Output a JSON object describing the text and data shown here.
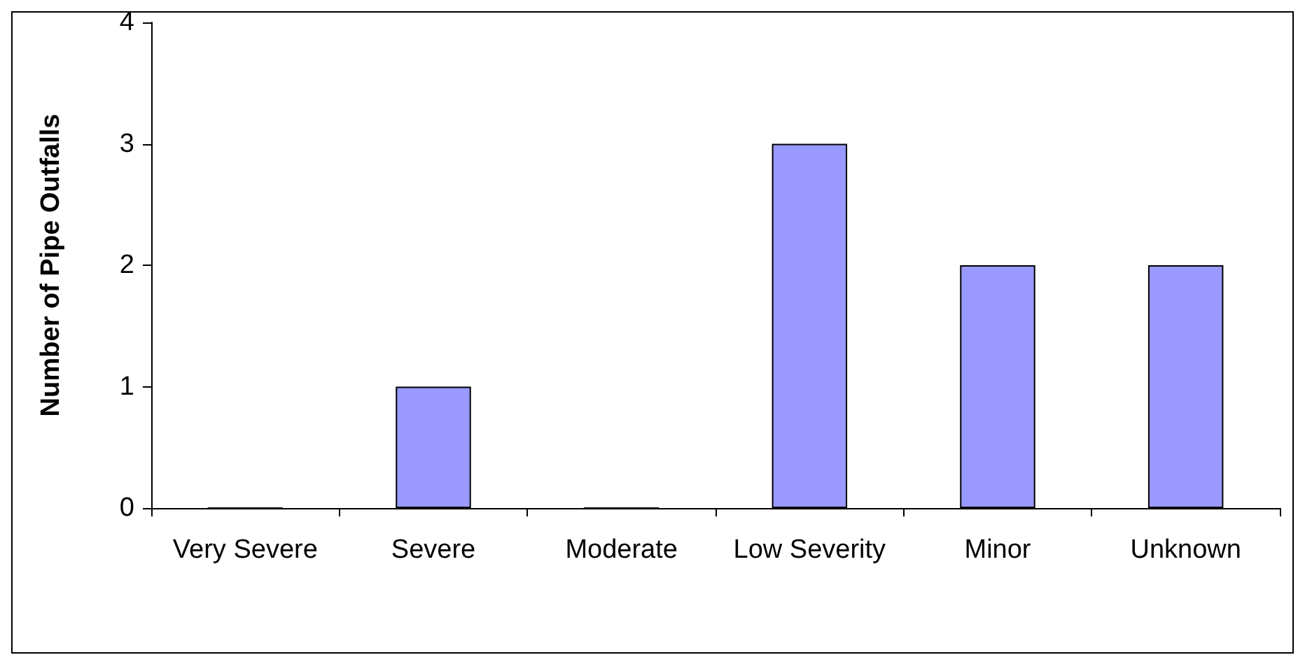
{
  "chart_data": {
    "type": "bar",
    "ylabel": "Number of Pipe Outfalls",
    "categories": [
      "Very Severe",
      "Severe",
      "Moderate",
      "Low Severity",
      "Minor",
      "Unknown"
    ],
    "values": [
      0,
      1,
      0,
      3,
      2,
      2
    ],
    "color": "#9999ff",
    "ylim": [
      0,
      4
    ],
    "yticks": [
      0,
      1,
      2,
      3,
      4
    ],
    "grid": false
  }
}
